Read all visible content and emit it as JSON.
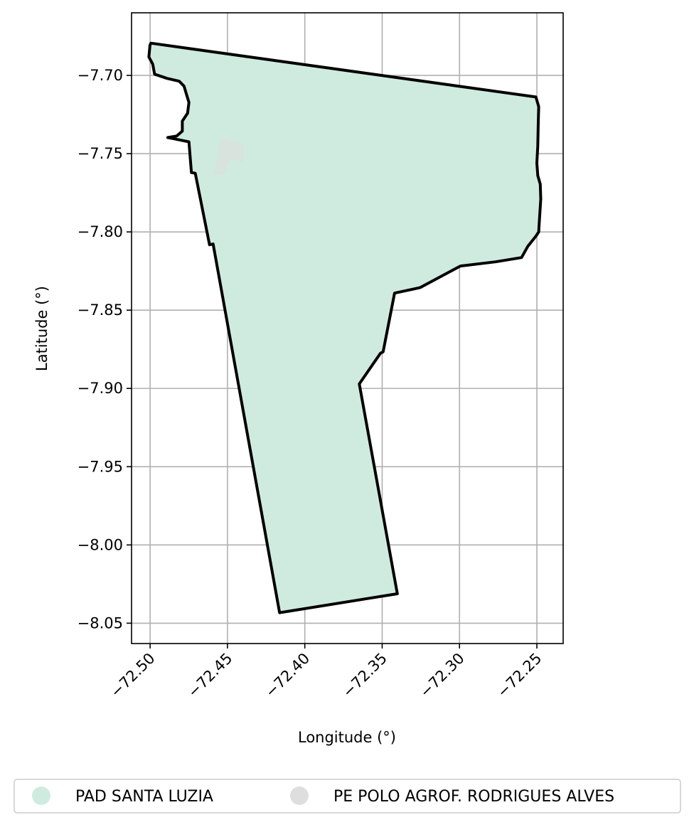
{
  "chart_data": {
    "type": "map",
    "xlabel": "Longitude (°)",
    "ylabel": "Latitude (°)",
    "xlim": [
      -72.512,
      -72.233
    ],
    "ylim": [
      -8.063,
      -7.66
    ],
    "x_ticks": [
      -72.5,
      -72.45,
      -72.4,
      -72.35,
      -72.3,
      -72.25
    ],
    "x_tick_labels": [
      "−72.50",
      "−72.45",
      "−72.40",
      "−72.35",
      "−72.30",
      "−72.25"
    ],
    "y_ticks": [
      -7.7,
      -7.75,
      -7.8,
      -7.85,
      -7.9,
      -7.95,
      -8.0,
      -8.05
    ],
    "y_tick_labels": [
      "−7.70",
      "−7.75",
      "−7.80",
      "−7.85",
      "−7.90",
      "−7.95",
      "−8.00",
      "−8.05"
    ],
    "grid": true,
    "legend_position": "bottom-center",
    "legend": [
      {
        "label": "PAD SANTA LUZIA",
        "color": "#cfebdf"
      },
      {
        "label": "PE POLO AGROF. RODRIGUES ALVES",
        "color": "#dedede"
      }
    ],
    "features": [
      {
        "name": "PAD SANTA LUZIA",
        "color": "#cfebdf",
        "stroke": "#000000",
        "coordinates": [
          [
            -72.4995,
            -7.6794
          ],
          [
            -72.2506,
            -7.7138
          ],
          [
            -72.2488,
            -7.72
          ],
          [
            -72.2491,
            -7.73
          ],
          [
            -72.2494,
            -7.745
          ],
          [
            -72.25,
            -7.756
          ],
          [
            -72.2494,
            -7.764
          ],
          [
            -72.2478,
            -7.7695
          ],
          [
            -72.2475,
            -7.779
          ],
          [
            -72.2486,
            -7.796
          ],
          [
            -72.2488,
            -7.8
          ],
          [
            -72.2506,
            -7.8027
          ],
          [
            -72.2558,
            -7.8091
          ],
          [
            -72.2599,
            -7.8164
          ],
          [
            -72.2767,
            -7.8191
          ],
          [
            -72.2994,
            -7.8218
          ],
          [
            -72.3253,
            -7.8355
          ],
          [
            -72.3294,
            -7.8364
          ],
          [
            -72.342,
            -7.8391
          ],
          [
            -72.3494,
            -7.8766
          ],
          [
            -72.3511,
            -7.8775
          ],
          [
            -72.3648,
            -7.8971
          ],
          [
            -72.3402,
            -8.0312
          ],
          [
            -72.4163,
            -8.0433
          ],
          [
            -72.4593,
            -7.8077
          ],
          [
            -72.4616,
            -7.8082
          ],
          [
            -72.4708,
            -7.7625
          ],
          [
            -72.4733,
            -7.7621
          ],
          [
            -72.4749,
            -7.7424
          ],
          [
            -72.4886,
            -7.7397
          ],
          [
            -72.4829,
            -7.7388
          ],
          [
            -72.4792,
            -7.7356
          ],
          [
            -72.4792,
            -7.7292
          ],
          [
            -72.4758,
            -7.7242
          ],
          [
            -72.4749,
            -7.7173
          ],
          [
            -72.4781,
            -7.7069
          ],
          [
            -72.4812,
            -7.7037
          ],
          [
            -72.4891,
            -7.7019
          ],
          [
            -72.4971,
            -7.6992
          ],
          [
            -72.4983,
            -7.6928
          ],
          [
            -72.5008,
            -7.6882
          ],
          [
            -72.5001,
            -7.6807
          ],
          [
            -72.4995,
            -7.6794
          ]
        ]
      },
      {
        "name": "PE POLO AGROF. RODRIGUES ALVES",
        "color": "#dedede",
        "stroke": "none",
        "coordinates": [
          [
            -72.454,
            -7.74
          ],
          [
            -72.439,
            -7.744
          ],
          [
            -72.4395,
            -7.756
          ],
          [
            -72.448,
            -7.753
          ],
          [
            -72.4525,
            -7.764
          ],
          [
            -72.459,
            -7.763
          ],
          [
            -72.454,
            -7.74
          ]
        ]
      }
    ]
  }
}
